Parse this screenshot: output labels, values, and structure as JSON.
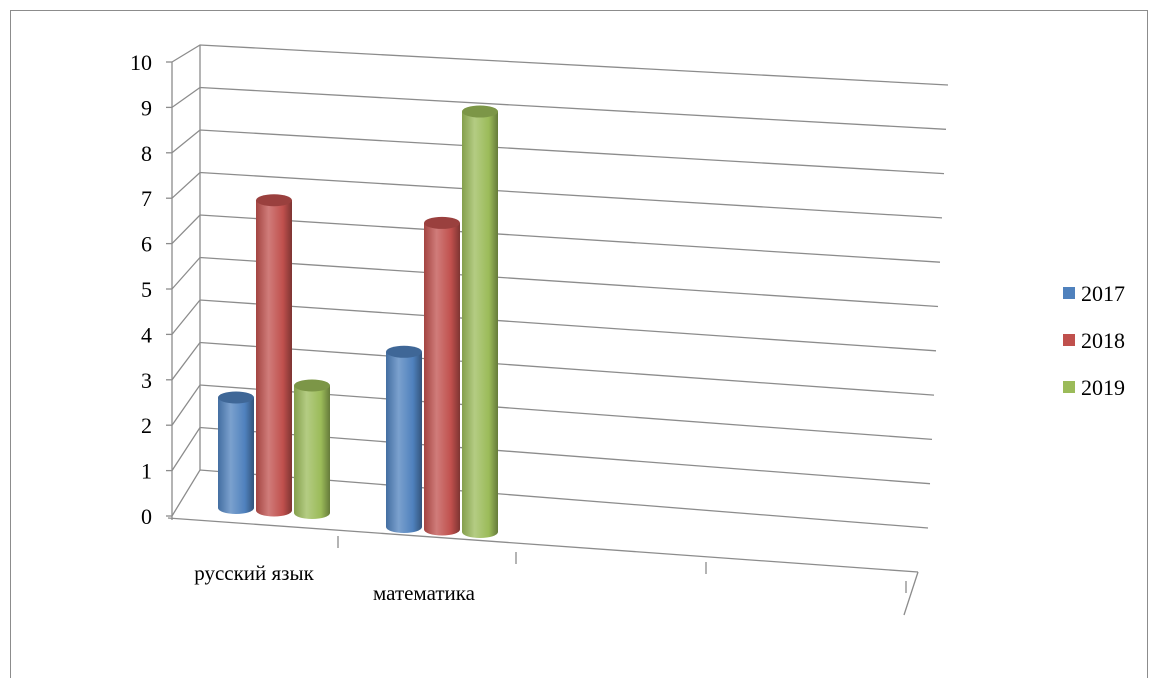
{
  "chart_data": {
    "type": "bar",
    "style": "3d-cylinder",
    "title": "",
    "xlabel": "",
    "ylabel": "",
    "categories": [
      "русский язык",
      "математика"
    ],
    "series": [
      {
        "name": "2017",
        "color": "#4f81bd",
        "values": [
          2.6,
          4.0
        ]
      },
      {
        "name": "2018",
        "color": "#c0504d",
        "values": [
          7.3,
          7.0
        ]
      },
      {
        "name": "2019",
        "color": "#9bbb59",
        "values": [
          3.0,
          9.6
        ]
      }
    ],
    "ylim": [
      0,
      10
    ],
    "yticks": [
      "0",
      "1",
      "2",
      "3",
      "4",
      "5",
      "6",
      "7",
      "8",
      "9",
      "10"
    ],
    "grid": true,
    "legend": "right"
  }
}
